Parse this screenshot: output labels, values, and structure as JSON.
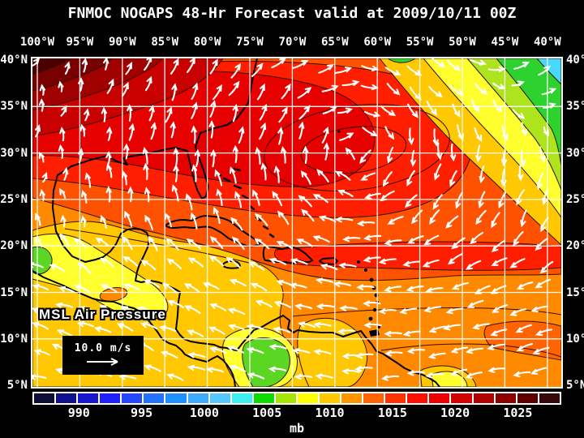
{
  "header": {
    "title": "FNMOC NOGAPS 48-Hr Forecast valid at 2009/10/11 00Z"
  },
  "axes": {
    "lon_labels": [
      "100°W",
      "95°W",
      "90°W",
      "85°W",
      "80°W",
      "75°W",
      "70°W",
      "65°W",
      "60°W",
      "55°W",
      "50°W",
      "45°W",
      "40°W"
    ],
    "lat_labels": [
      "40°N",
      "35°N",
      "30°N",
      "25°N",
      "20°N",
      "15°N",
      "10°N",
      "5°N"
    ]
  },
  "overlay": {
    "field_label": "MSL Air Pressure",
    "wind_scale_label": "10.0 m/s"
  },
  "colorbar": {
    "unit_label": "mb",
    "tick_labels": [
      "990",
      "995",
      "1000",
      "1005",
      "1010",
      "1015",
      "1020",
      "1025"
    ],
    "cell_colors": [
      "#0d0d35",
      "#10108c",
      "#1717cd",
      "#1f1fff",
      "#2547ff",
      "#2472ff",
      "#1e90ff",
      "#3fabff",
      "#55c8ff",
      "#3df0f0",
      "#0fdb00",
      "#a6e607",
      "#ffff00",
      "#ffc800",
      "#ff9600",
      "#ff6400",
      "#ff3200",
      "#ff0f00",
      "#ee0000",
      "#d20000",
      "#b00000",
      "#8c0000",
      "#5f0000",
      "#37080a"
    ]
  },
  "chart_data": {
    "type": "heatmap",
    "title": "FNMOC NOGAPS 48-Hr Forecast valid at 2009/10/11 00Z",
    "field": "Mean sea level air pressure (filled contours) with surface wind vectors over the Gulf of Mexico, Caribbean and western Atlantic",
    "unit": "mb",
    "lon_axis_deg_west": [
      100,
      95,
      90,
      85,
      80,
      75,
      70,
      65,
      60,
      55,
      50,
      45,
      40
    ],
    "lat_axis_deg_north": [
      40,
      35,
      30,
      25,
      20,
      15,
      10,
      5
    ],
    "colorbar_ticks_mb": [
      990,
      995,
      1000,
      1005,
      1010,
      1015,
      1020,
      1025
    ],
    "colorbar_cells_low_to_high": 24,
    "wind_reference_vector_m_s": 10.0,
    "legend_position": "bottom",
    "grid": "on, every 5 degrees",
    "notable_features": [
      {
        "name": "dark-maroon pressure maximum",
        "approx_location": "northwest corner ~40N 98W",
        "approx_pressure_mb": 1026
      },
      {
        "name": "broad subtropical high (clockwise winds)",
        "approx_location": "~31N 64W",
        "approx_pressure_mb": 1019
      },
      {
        "name": "low pressure bands toward northeast corner",
        "approx_location": "~40N 40W",
        "approx_pressure_mb": 1003
      },
      {
        "name": "low over Colombia / SW Caribbean",
        "approx_location": "~8N 75W",
        "approx_pressure_mb": 1006
      },
      {
        "name": "eastern Pacific low at west edge",
        "approx_location": "~20N 100W",
        "approx_pressure_mb": 1005
      },
      {
        "name": "trade-wind easterlies",
        "approx_location": "south of 20N across Caribbean and tropical Atlantic"
      }
    ]
  }
}
